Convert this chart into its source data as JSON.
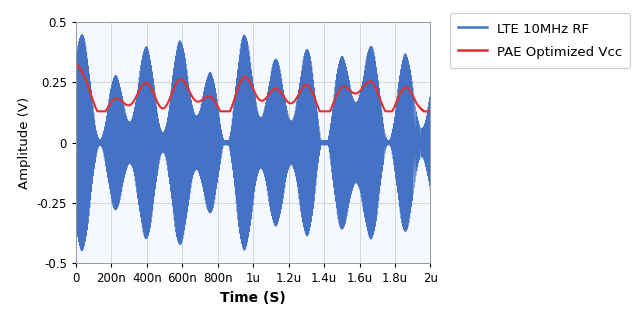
{
  "xlabel": "Time (S)",
  "ylabel": "Amplitude (V)",
  "xlim": [
    0,
    2e-06
  ],
  "ylim": [
    -0.5,
    0.5
  ],
  "xtick_values": [
    0,
    2e-07,
    4e-07,
    6e-07,
    8e-07,
    1e-06,
    1.2e-06,
    1.4e-06,
    1.6e-06,
    1.8e-06,
    2e-06
  ],
  "xtick_labels": [
    "0",
    "200n",
    "400n",
    "600n",
    "800n",
    "1u",
    "1.2u",
    "1.4u",
    "1.6u",
    "1.8u",
    "2u"
  ],
  "ytick_values": [
    -0.5,
    -0.25,
    0,
    0.25,
    0.5
  ],
  "ytick_labels": [
    "-0.5",
    "-0.25",
    "0",
    "0.25",
    "0.5"
  ],
  "rf_color": "#4472c4",
  "vcc_color": "#e03030",
  "legend_labels": [
    "LTE 10MHz RF",
    "PAE Optimized Vcc"
  ],
  "sample_rate": 2000000000.0,
  "duration": 2e-06,
  "background_color": "#ffffff",
  "grid_color": "#d0d0d0",
  "axis_bg_color": "#f5f8ff",
  "lw_rf": 0.4,
  "lw_vcc": 1.5,
  "envelope_lobe_freq": 5500000.0,
  "envelope_lobe_freq2": 3200000.0,
  "carrier_freq": 200000000.0,
  "vcc_smooth_ns": 120
}
